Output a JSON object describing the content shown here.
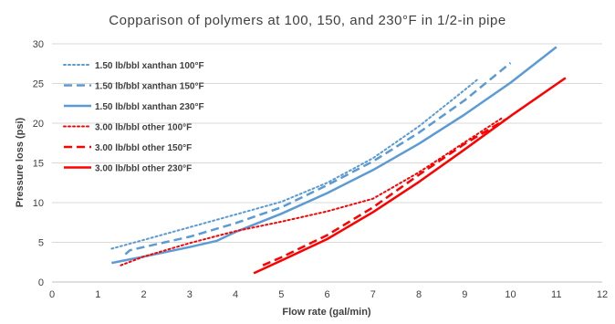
{
  "chart_data": {
    "type": "line",
    "title": "Copparison of polymers at 100, 150, and 230°F in 1/2-in pipe",
    "xlabel": "Flow rate (gal/min)",
    "ylabel": "Pressure loss  (psi)",
    "xlim": [
      0,
      12
    ],
    "ylim": [
      0,
      30
    ],
    "xticks": [
      "0",
      "1",
      "2",
      "3",
      "4",
      "5",
      "6",
      "7",
      "8",
      "9",
      "10",
      "11",
      "12"
    ],
    "yticks": [
      "0",
      "5",
      "10",
      "15",
      "20",
      "25",
      "30"
    ],
    "grid": true,
    "legend_position": "top-left",
    "series": [
      {
        "name": "1.50 lb/bbl xanthan 100°F",
        "color": "#5b9bd5",
        "dash": "dotted",
        "x": [
          1.3,
          2.0,
          3.0,
          4.0,
          5.0,
          6.0,
          7.0,
          8.0,
          9.0,
          9.3
        ],
        "y": [
          4.2,
          5.3,
          6.9,
          8.5,
          10.1,
          12.5,
          15.6,
          19.6,
          24.2,
          25.6
        ]
      },
      {
        "name": "1.50 lb/bbl xanthan 150°F",
        "color": "#5b9bd5",
        "dash": "dashed",
        "x": [
          1.6,
          1.7,
          2.0,
          3.0,
          4.0,
          5.0,
          6.0,
          7.0,
          8.0,
          9.0,
          10.0
        ],
        "y": [
          3.5,
          4.0,
          4.4,
          5.7,
          7.4,
          9.4,
          12.2,
          15.2,
          18.8,
          22.9,
          27.6
        ]
      },
      {
        "name": "1.50 lb/bbl xanthan 230°F",
        "color": "#5b9bd5",
        "dash": "solid",
        "x": [
          1.3,
          2.0,
          3.0,
          3.6,
          4.0,
          5.0,
          6.0,
          7.0,
          8.0,
          9.0,
          10.0,
          11.0
        ],
        "y": [
          2.4,
          3.2,
          4.4,
          5.2,
          6.3,
          8.6,
          11.2,
          14.1,
          17.4,
          21.1,
          25.1,
          29.6
        ]
      },
      {
        "name": "3.00 lb/bbl other 100°F",
        "color": "#ff0000",
        "dash": "dotted",
        "x": [
          1.5,
          2.0,
          3.0,
          4.0,
          5.0,
          6.0,
          7.0,
          8.0,
          9.0,
          9.8
        ],
        "y": [
          2.1,
          3.2,
          4.9,
          6.4,
          7.6,
          8.9,
          10.5,
          13.8,
          17.6,
          20.6
        ]
      },
      {
        "name": "3.00 lb/bbl other 150°F",
        "color": "#ff0000",
        "dash": "dashed",
        "x": [
          4.6,
          5.0,
          6.0,
          7.0,
          8.0,
          9.0,
          9.9
        ],
        "y": [
          2.1,
          3.1,
          5.9,
          9.4,
          13.5,
          17.4,
          20.5
        ]
      },
      {
        "name": "3.00 lb/bbl other 230°F",
        "color": "#ff0000",
        "dash": "solid",
        "x": [
          4.4,
          5.0,
          6.0,
          7.0,
          8.0,
          9.0,
          10.0,
          11.2
        ],
        "y": [
          1.1,
          2.7,
          5.4,
          8.8,
          12.6,
          16.7,
          20.9,
          25.7
        ]
      }
    ]
  }
}
